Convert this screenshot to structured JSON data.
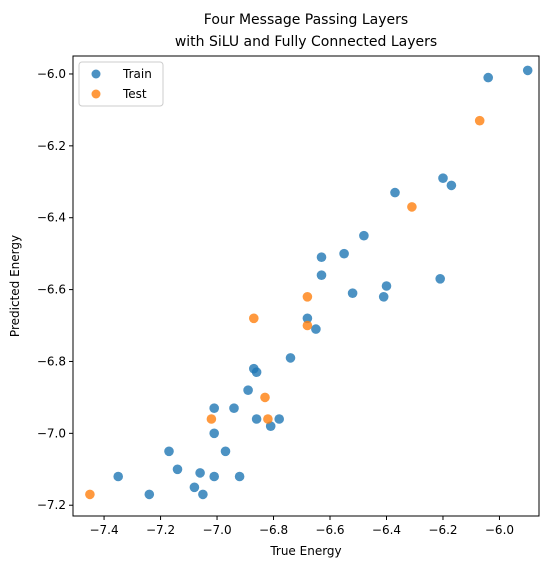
{
  "chart_data": {
    "type": "scatter",
    "title": "Four Message Passing Layers\nwith SiLU and Fully Connected Layers",
    "title_lines": [
      "Four Message Passing Layers",
      "with SiLU and Fully Connected Layers"
    ],
    "xlabel": "True Energy",
    "ylabel": "Predicted Energy",
    "xlim": [
      -7.51,
      -5.86
    ],
    "ylim": [
      -7.23,
      -5.95
    ],
    "xticks": [
      -7.4,
      -7.2,
      -7.0,
      -6.8,
      -6.6,
      -6.4,
      -6.2,
      -6.0
    ],
    "xtick_labels": [
      "−7.4",
      "−7.2",
      "−7.0",
      "−6.8",
      "−6.6",
      "−6.4",
      "−6.2",
      "−6.0"
    ],
    "yticks": [
      -7.2,
      -7.0,
      -6.8,
      -6.6,
      -6.4,
      -6.2,
      -6.0
    ],
    "ytick_labels": [
      "−7.2",
      "−7.0",
      "−6.8",
      "−6.6",
      "−6.4",
      "−6.2",
      "−6.0"
    ],
    "grid": false,
    "legend_position": "top-left",
    "series": [
      {
        "name": "Train",
        "color": "#1f77b4",
        "points": [
          [
            -5.9,
            -5.99
          ],
          [
            -6.04,
            -6.01
          ],
          [
            -6.2,
            -6.29
          ],
          [
            -6.17,
            -6.31
          ],
          [
            -6.37,
            -6.33
          ],
          [
            -6.48,
            -6.45
          ],
          [
            -6.63,
            -6.51
          ],
          [
            -6.55,
            -6.5
          ],
          [
            -6.63,
            -6.56
          ],
          [
            -6.21,
            -6.57
          ],
          [
            -6.4,
            -6.59
          ],
          [
            -6.52,
            -6.61
          ],
          [
            -6.41,
            -6.62
          ],
          [
            -6.68,
            -6.68
          ],
          [
            -6.65,
            -6.71
          ],
          [
            -6.74,
            -6.79
          ],
          [
            -6.87,
            -6.82
          ],
          [
            -6.86,
            -6.83
          ],
          [
            -6.89,
            -6.88
          ],
          [
            -6.94,
            -6.93
          ],
          [
            -7.01,
            -6.93
          ],
          [
            -6.86,
            -6.96
          ],
          [
            -6.78,
            -6.96
          ],
          [
            -6.81,
            -6.98
          ],
          [
            -7.01,
            -7.0
          ],
          [
            -7.17,
            -7.05
          ],
          [
            -6.97,
            -7.05
          ],
          [
            -7.14,
            -7.1
          ],
          [
            -7.06,
            -7.11
          ],
          [
            -7.35,
            -7.12
          ],
          [
            -7.01,
            -7.12
          ],
          [
            -6.92,
            -7.12
          ],
          [
            -7.08,
            -7.15
          ],
          [
            -7.24,
            -7.17
          ],
          [
            -7.05,
            -7.17
          ]
        ]
      },
      {
        "name": "Test",
        "color": "#ff7f0e",
        "points": [
          [
            -6.07,
            -6.13
          ],
          [
            -6.31,
            -6.37
          ],
          [
            -6.68,
            -6.62
          ],
          [
            -6.68,
            -6.7
          ],
          [
            -6.87,
            -6.68
          ],
          [
            -6.83,
            -6.9
          ],
          [
            -7.02,
            -6.96
          ],
          [
            -6.82,
            -6.96
          ],
          [
            -7.45,
            -7.17
          ]
        ]
      }
    ]
  }
}
